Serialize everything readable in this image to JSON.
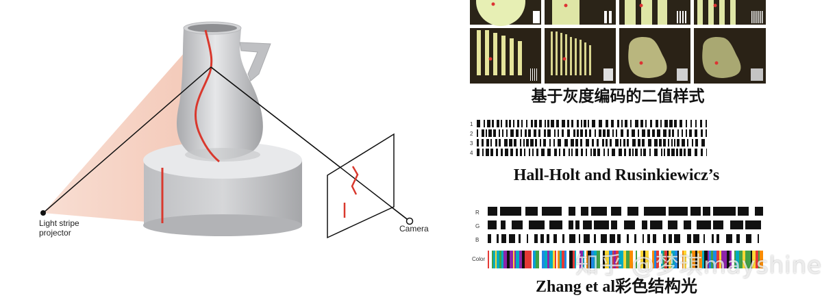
{
  "left_diagram": {
    "projector_label": "Light stripe\nprojector",
    "camera_label": "Camera",
    "beam_color": "#f3c4b2",
    "stripe_color": "#d9382d",
    "vase_color": "#c9cacc"
  },
  "photos": {
    "caption": "基于灰度编码的二值样式"
  },
  "hall_holt": {
    "caption": "Hall-Holt and Rusinkiewicz’s",
    "rows": [
      "1",
      "2",
      "3",
      "4"
    ]
  },
  "zhang": {
    "caption": "Zhang et al彩色结构光",
    "rows": [
      "R",
      "G",
      "B",
      "Color"
    ]
  },
  "watermark": "知乎 @梦琪mayshine"
}
